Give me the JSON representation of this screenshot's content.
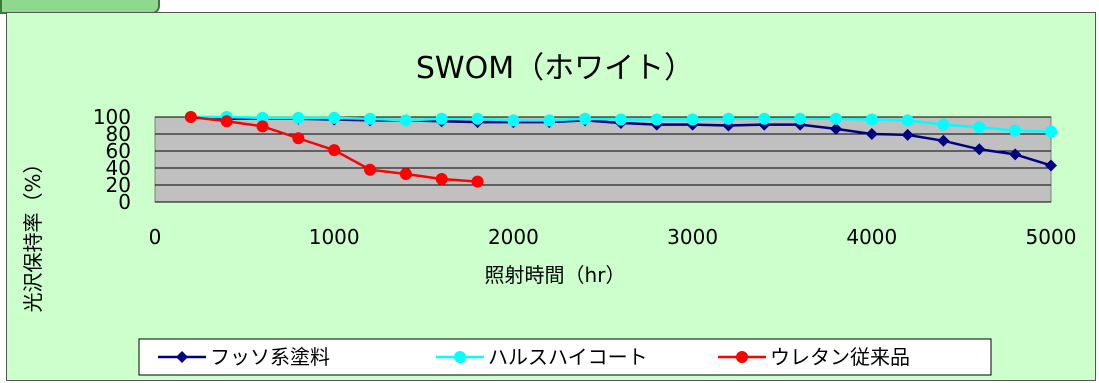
{
  "chart_data": {
    "type": "line",
    "title": "SWOM（ホワイト）",
    "xlabel": "照射時間（hr）",
    "ylabel": "光沢保持率（%）",
    "xlim": [
      0,
      5000
    ],
    "ylim": [
      0,
      100
    ],
    "x_ticks": [
      "0",
      "1000",
      "2000",
      "3000",
      "4000",
      "5000"
    ],
    "y_ticks": [
      "0",
      "20",
      "40",
      "60",
      "80",
      "100"
    ],
    "grid": true,
    "legend_position": "bottom",
    "series": [
      {
        "name": "フッソ系塗料",
        "color": "#000080",
        "marker": "diamond",
        "x": [
          200,
          400,
          600,
          800,
          1000,
          1200,
          1400,
          1600,
          1800,
          2000,
          2200,
          2400,
          2600,
          2800,
          3000,
          3200,
          3400,
          3600,
          3800,
          4000,
          4200,
          4400,
          4600,
          4800,
          5000
        ],
        "y": [
          100,
          98,
          98,
          98,
          97,
          96,
          96,
          95,
          94,
          94,
          94,
          96,
          93,
          91,
          91,
          90,
          91,
          91,
          86,
          80,
          79,
          72,
          62,
          56,
          43
        ]
      },
      {
        "name": "ハルスハイコート",
        "color": "#00ffff",
        "marker": "circle",
        "x": [
          200,
          400,
          600,
          800,
          1000,
          1200,
          1400,
          1600,
          1800,
          2000,
          2200,
          2400,
          2600,
          2800,
          3000,
          3200,
          3400,
          3600,
          3800,
          4000,
          4200,
          4400,
          4600,
          4800,
          5000
        ],
        "y": [
          100,
          100,
          99,
          99,
          99,
          98,
          96,
          98,
          98,
          96,
          96,
          98,
          97,
          97,
          97,
          98,
          98,
          98,
          98,
          97,
          96,
          91,
          88,
          84,
          83
        ]
      },
      {
        "name": "ウレタン従来品",
        "color": "#ff0000",
        "marker": "circle",
        "x": [
          200,
          400,
          600,
          800,
          1000,
          1200,
          1400,
          1600,
          1800
        ],
        "y": [
          100,
          95,
          89,
          75,
          61,
          38,
          33,
          27,
          24
        ]
      }
    ]
  }
}
